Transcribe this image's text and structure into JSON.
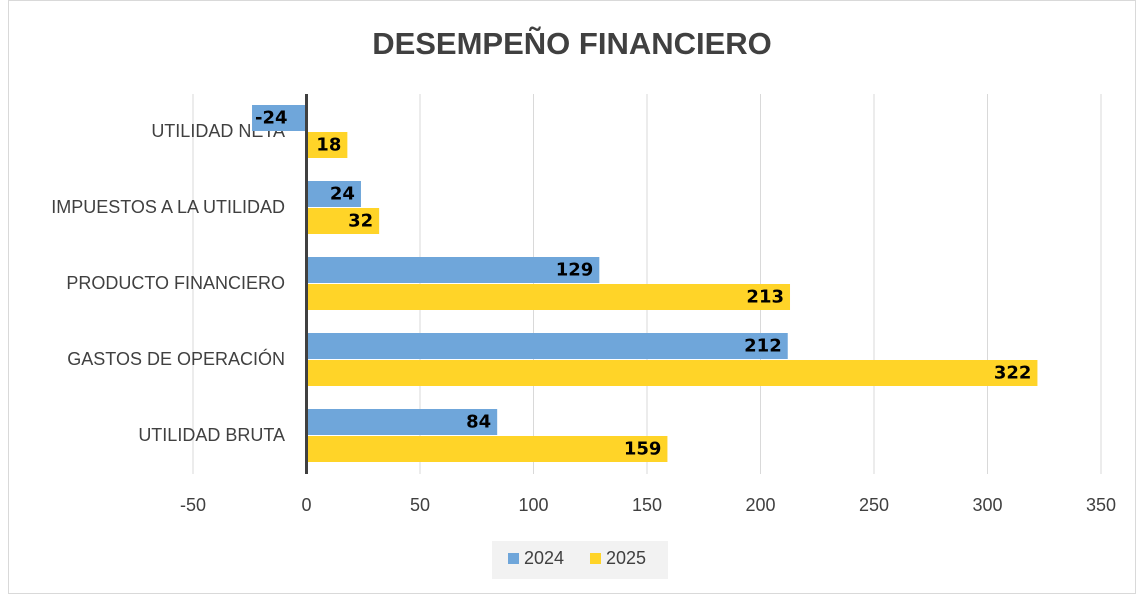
{
  "chart_data": {
    "type": "bar",
    "orientation": "horizontal",
    "title": "DESEMPEÑO FINANCIERO",
    "categories": [
      "UTILIDAD BRUTA",
      "GASTOS DE OPERACIÓN",
      "PRODUCTO FINANCIERO",
      "IMPUESTOS A LA UTILIDAD",
      "UTILIDAD NETA"
    ],
    "series": [
      {
        "name": "2024",
        "color": "#6fa6da",
        "values": [
          84,
          212,
          129,
          24,
          -24
        ]
      },
      {
        "name": "2025",
        "color": "#ffd428",
        "values": [
          159,
          322,
          213,
          32,
          18
        ]
      }
    ],
    "xlim": [
      -50,
      350
    ],
    "xticks": [
      -50,
      0,
      50,
      100,
      150,
      200,
      250,
      300,
      350
    ],
    "grid": true,
    "legend": "bottom",
    "data_labels": true
  }
}
